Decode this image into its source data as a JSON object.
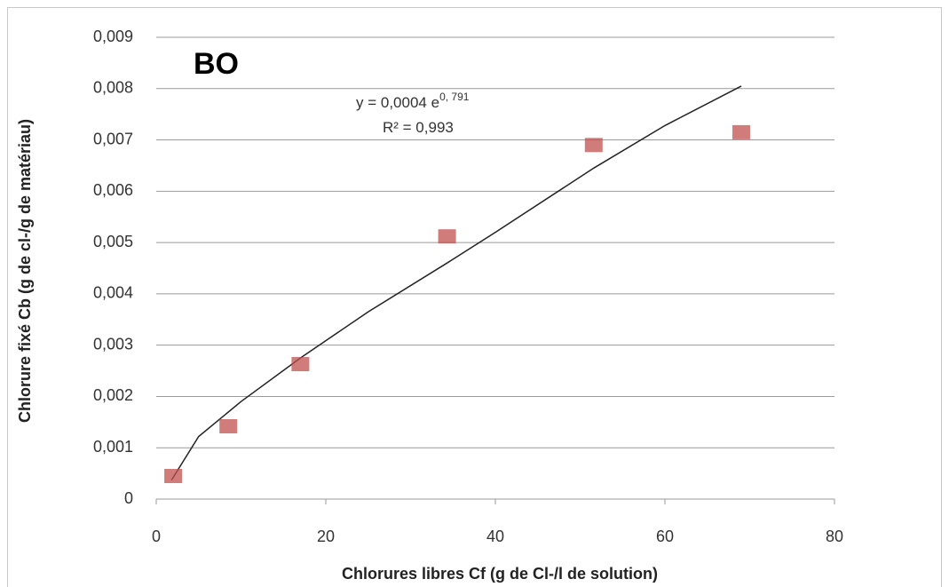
{
  "chart_data": {
    "type": "scatter",
    "title": "BO",
    "xlabel": "Chlorures libres Cf (g de Cl-/l de solution)",
    "ylabel": "Chlorure fixé Cb (g de cl-/g de matériau)",
    "xlim": [
      0,
      80
    ],
    "ylim": [
      0,
      0.009
    ],
    "x_ticks": [
      "0",
      "20",
      "40",
      "60",
      "80"
    ],
    "y_ticks": [
      "0",
      "0,001",
      "0,002",
      "0,003",
      "0,004",
      "0,005",
      "0,006",
      "0,007",
      "0,008",
      "0,009"
    ],
    "grid": "horizontal",
    "series": [
      {
        "color": "#c0504d",
        "marker": "square",
        "x": [
          2,
          8.5,
          17,
          34.3,
          51.6,
          69
        ],
        "y": [
          0.00045,
          0.00142,
          0.00263,
          0.00512,
          0.0069,
          0.00715
        ]
      }
    ],
    "trendline": {
      "equation_prefix": "y = 0,0004 e",
      "equation_exponent": "0, 791",
      "r2": "R² = 0,993",
      "x_start": 1.8,
      "x_end": 69,
      "points": [
        [
          1.8,
          0.00037
        ],
        [
          5,
          0.00122
        ],
        [
          10,
          0.0019
        ],
        [
          17,
          0.00275
        ],
        [
          25,
          0.00365
        ],
        [
          34.3,
          0.0046
        ],
        [
          40,
          0.0052
        ],
        [
          51.6,
          0.00645
        ],
        [
          60,
          0.00728
        ],
        [
          69,
          0.00805
        ]
      ]
    }
  }
}
